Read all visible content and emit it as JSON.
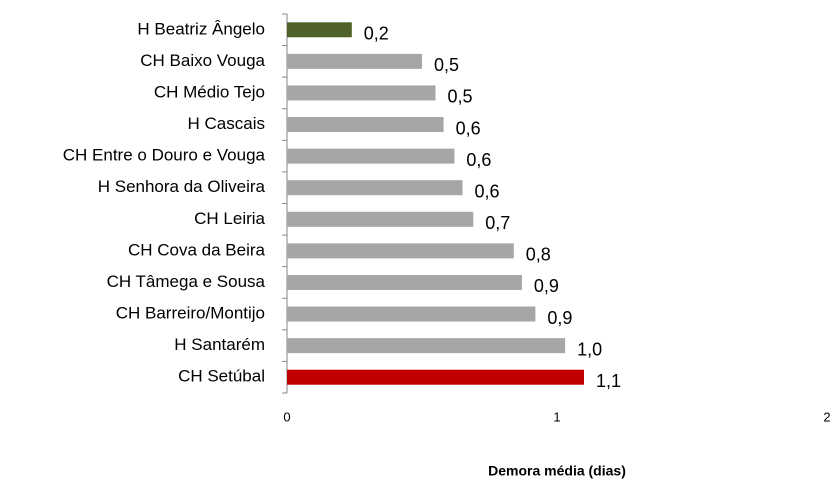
{
  "chart_data": {
    "type": "bar",
    "orientation": "horizontal",
    "categories": [
      "H Beatriz Ângelo",
      "CH Baixo Vouga",
      "CH Médio Tejo",
      "H Cascais",
      "CH Entre o Douro e Vouga",
      "H Senhora da Oliveira",
      "CH Leiria",
      "CH Cova da Beira",
      "CH Tâmega e Sousa",
      "CH Barreiro/Montijo",
      "H Santarém",
      "CH Setúbal"
    ],
    "values": [
      0.24,
      0.5,
      0.55,
      0.58,
      0.62,
      0.65,
      0.69,
      0.84,
      0.87,
      0.92,
      1.03,
      1.1
    ],
    "value_labels": [
      "0,2",
      "0,5",
      "0,5",
      "0,6",
      "0,6",
      "0,6",
      "0,7",
      "0,8",
      "0,9",
      "0,9",
      "1,0",
      "1,1"
    ],
    "colors": [
      "#4f6228",
      "#a6a6a6",
      "#a6a6a6",
      "#a6a6a6",
      "#a6a6a6",
      "#a6a6a6",
      "#a6a6a6",
      "#a6a6a6",
      "#a6a6a6",
      "#a6a6a6",
      "#a6a6a6",
      "#c00000"
    ],
    "xlim": [
      0,
      2
    ],
    "xticks": [
      0,
      1,
      2
    ],
    "x_label": "Demora média (dias)"
  }
}
